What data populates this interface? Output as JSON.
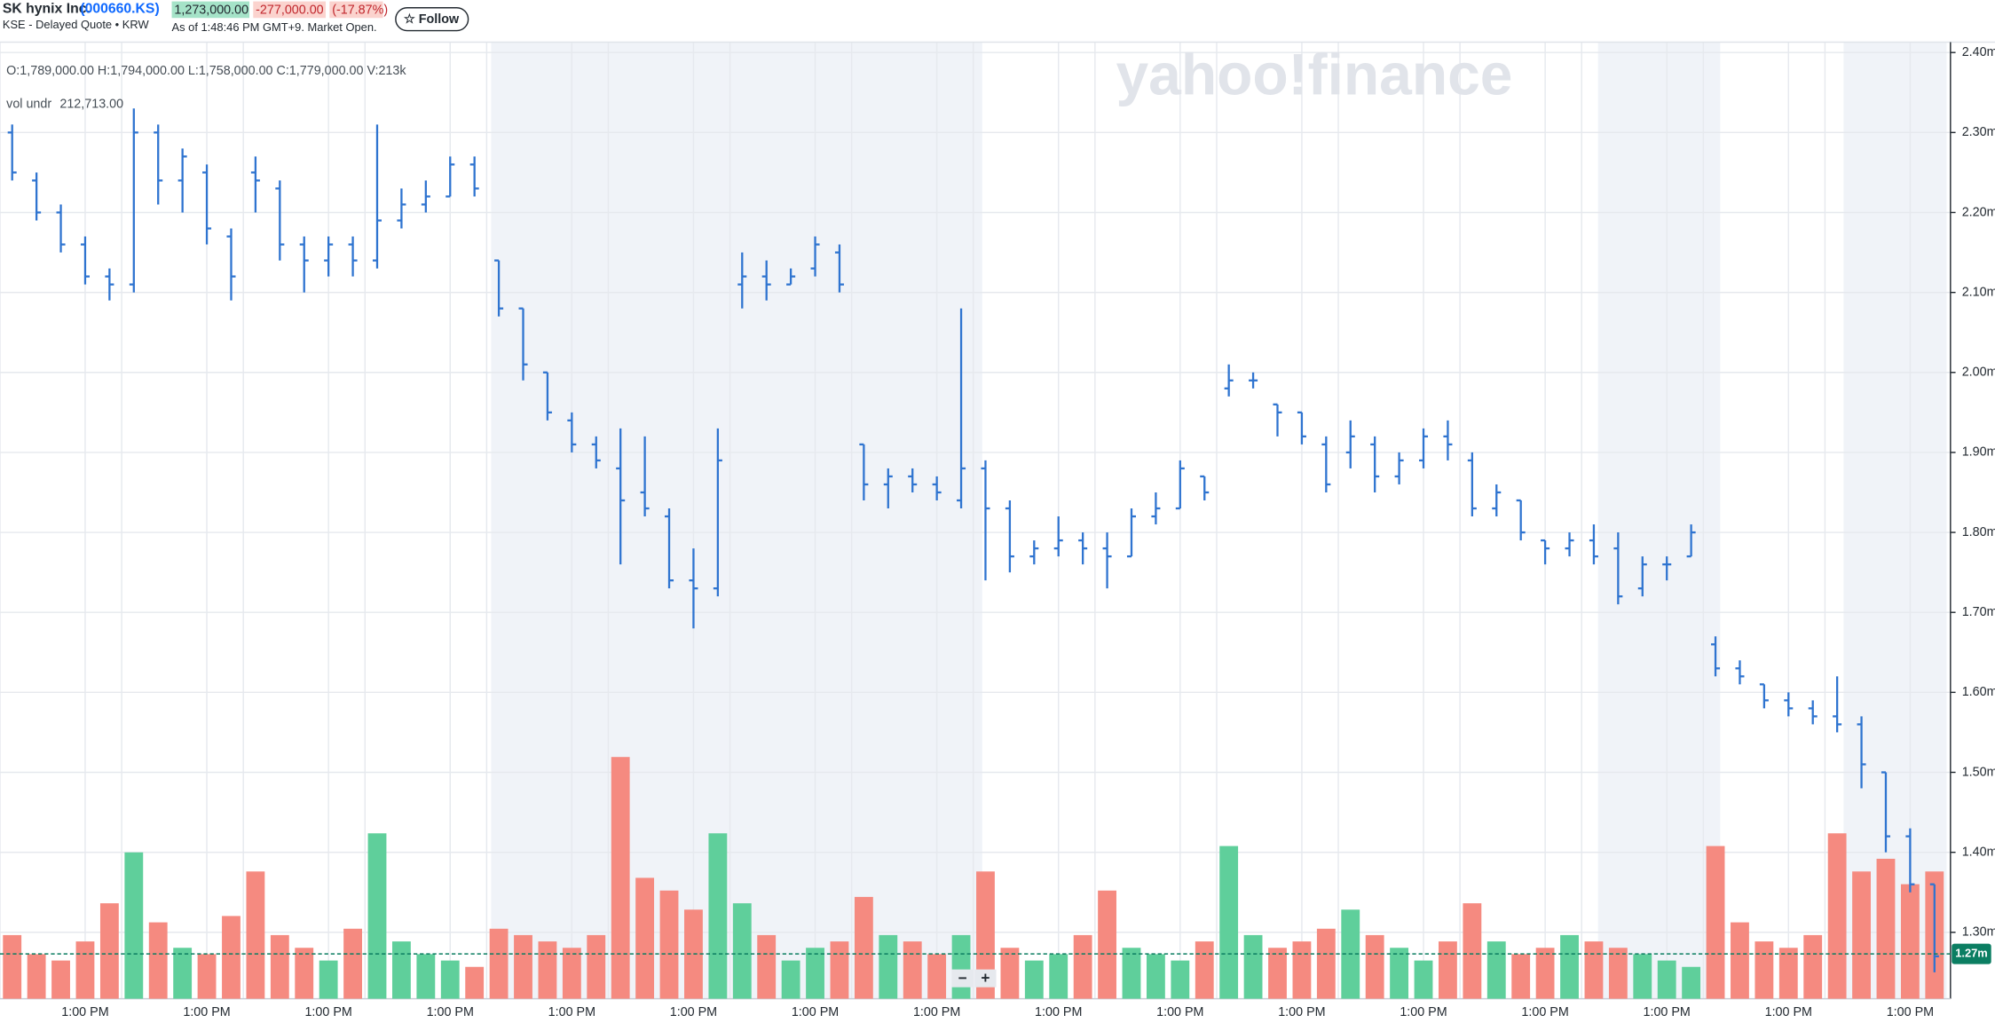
{
  "header": {
    "name": "SK hynix Inc.",
    "symbol": "(000660.KS)",
    "exchange": "KSE - Delayed Quote • KRW",
    "price": "1,273,000.00",
    "change": "-277,000.00",
    "change_pct": "(-17.87%)",
    "as_of": "As of 1:48:46 PM GMT+9. Market Open.",
    "follow": "☆ Follow",
    "logo": "yahoo!finance",
    "controls": [
      "−",
      "+"
    ]
  },
  "chart_data": {
    "type": "ohlc",
    "color": "#2f74d0",
    "readout": "O:1,789,000.00   H:1,794,000.00   L:1,758,000.00   C:1,779,000.00   V:213k",
    "volume_label": "vol undr",
    "volume_readout": "212,713.00",
    "categories": [
      null,
      null,
      null,
      "1:00 PM",
      null,
      null,
      null,
      null,
      "1:00 PM",
      null,
      null,
      null,
      null,
      "1:00 PM",
      null,
      null,
      null,
      null,
      "1:00 PM",
      null,
      null,
      null,
      null,
      "1:00 PM",
      null,
      null,
      null,
      null,
      "1:00 PM",
      null,
      null,
      null,
      null,
      "1:00 PM",
      null,
      null,
      null,
      null,
      "1:00 PM",
      null,
      null,
      null,
      null,
      "1:00 PM",
      null,
      null,
      null,
      null,
      "1:00 PM",
      null,
      null,
      null,
      null,
      "1:00 PM",
      null,
      null,
      null,
      null,
      "1:00 PM",
      null,
      null,
      null,
      null,
      "1:00 PM",
      null,
      null,
      null,
      null,
      "1:00 PM",
      null,
      null,
      null,
      null,
      "1:00 PM",
      null,
      null,
      null,
      null,
      "1:00 PM",
      null
    ],
    "ohlc": [
      [
        2.3,
        2.31,
        2.24,
        2.25
      ],
      [
        2.24,
        2.25,
        2.19,
        2.2
      ],
      [
        2.2,
        2.21,
        2.15,
        2.16
      ],
      [
        2.16,
        2.17,
        2.11,
        2.12
      ],
      [
        2.12,
        2.13,
        2.09,
        2.11
      ],
      [
        2.11,
        2.33,
        2.1,
        2.3
      ],
      [
        2.3,
        2.31,
        2.21,
        2.24
      ],
      [
        2.24,
        2.28,
        2.2,
        2.27
      ],
      [
        2.25,
        2.26,
        2.16,
        2.18
      ],
      [
        2.17,
        2.18,
        2.09,
        2.12
      ],
      [
        2.25,
        2.27,
        2.2,
        2.24
      ],
      [
        2.23,
        2.24,
        2.14,
        2.16
      ],
      [
        2.16,
        2.17,
        2.1,
        2.14
      ],
      [
        2.14,
        2.17,
        2.12,
        2.16
      ],
      [
        2.16,
        2.17,
        2.12,
        2.14
      ],
      [
        2.14,
        2.31,
        2.13,
        2.19
      ],
      [
        2.19,
        2.23,
        2.18,
        2.21
      ],
      [
        2.21,
        2.24,
        2.2,
        2.22
      ],
      [
        2.22,
        2.27,
        2.22,
        2.26
      ],
      [
        2.26,
        2.27,
        2.22,
        2.23
      ],
      [
        2.14,
        2.14,
        2.07,
        2.08
      ],
      [
        2.08,
        2.08,
        1.99,
        2.01
      ],
      [
        2.0,
        2.0,
        1.94,
        1.95
      ],
      [
        1.94,
        1.95,
        1.9,
        1.91
      ],
      [
        1.91,
        1.92,
        1.88,
        1.89
      ],
      [
        1.88,
        1.93,
        1.76,
        1.84
      ],
      [
        1.85,
        1.92,
        1.82,
        1.83
      ],
      [
        1.82,
        1.83,
        1.73,
        1.74
      ],
      [
        1.74,
        1.78,
        1.68,
        1.73
      ],
      [
        1.73,
        1.93,
        1.72,
        1.89
      ],
      [
        2.11,
        2.15,
        2.08,
        2.12
      ],
      [
        2.12,
        2.14,
        2.09,
        2.11
      ],
      [
        2.11,
        2.13,
        2.11,
        2.12
      ],
      [
        2.13,
        2.17,
        2.12,
        2.16
      ],
      [
        2.15,
        2.16,
        2.1,
        2.11
      ],
      [
        1.91,
        1.91,
        1.84,
        1.86
      ],
      [
        1.86,
        1.88,
        1.83,
        1.87
      ],
      [
        1.87,
        1.88,
        1.85,
        1.86
      ],
      [
        1.86,
        1.87,
        1.84,
        1.85
      ],
      [
        1.84,
        2.08,
        1.83,
        1.88
      ],
      [
        1.88,
        1.89,
        1.74,
        1.83
      ],
      [
        1.83,
        1.84,
        1.75,
        1.77
      ],
      [
        1.77,
        1.79,
        1.76,
        1.78
      ],
      [
        1.78,
        1.82,
        1.77,
        1.79
      ],
      [
        1.79,
        1.8,
        1.76,
        1.78
      ],
      [
        1.78,
        1.8,
        1.73,
        1.77
      ],
      [
        1.77,
        1.83,
        1.77,
        1.82
      ],
      [
        1.82,
        1.85,
        1.81,
        1.83
      ],
      [
        1.83,
        1.89,
        1.83,
        1.88
      ],
      [
        1.87,
        1.87,
        1.84,
        1.85
      ],
      [
        1.98,
        2.01,
        1.97,
        1.99
      ],
      [
        1.99,
        2.0,
        1.98,
        1.99
      ],
      [
        1.96,
        1.96,
        1.92,
        1.95
      ],
      [
        1.95,
        1.95,
        1.91,
        1.92
      ],
      [
        1.91,
        1.92,
        1.85,
        1.86
      ],
      [
        1.9,
        1.94,
        1.88,
        1.92
      ],
      [
        1.91,
        1.92,
        1.85,
        1.87
      ],
      [
        1.87,
        1.9,
        1.86,
        1.89
      ],
      [
        1.89,
        1.93,
        1.88,
        1.92
      ],
      [
        1.92,
        1.94,
        1.89,
        1.91
      ],
      [
        1.89,
        1.9,
        1.82,
        1.83
      ],
      [
        1.83,
        1.86,
        1.82,
        1.85
      ],
      [
        1.84,
        1.84,
        1.79,
        1.8
      ],
      [
        1.79,
        1.79,
        1.76,
        1.78
      ],
      [
        1.78,
        1.8,
        1.77,
        1.79
      ],
      [
        1.79,
        1.81,
        1.76,
        1.77
      ],
      [
        1.78,
        1.8,
        1.71,
        1.72
      ],
      [
        1.73,
        1.77,
        1.72,
        1.76
      ],
      [
        1.76,
        1.77,
        1.74,
        1.76
      ],
      [
        1.77,
        1.81,
        1.77,
        1.8
      ],
      [
        1.66,
        1.67,
        1.62,
        1.63
      ],
      [
        1.63,
        1.64,
        1.61,
        1.62
      ],
      [
        1.61,
        1.61,
        1.58,
        1.59
      ],
      [
        1.59,
        1.6,
        1.57,
        1.58
      ],
      [
        1.58,
        1.59,
        1.56,
        1.57
      ],
      [
        1.57,
        1.62,
        1.55,
        1.56
      ],
      [
        1.56,
        1.57,
        1.48,
        1.51
      ],
      [
        1.5,
        1.5,
        1.4,
        1.42
      ],
      [
        1.42,
        1.43,
        1.35,
        1.36
      ],
      [
        1.36,
        1.36,
        1.25,
        1.27
      ]
    ],
    "volume": {
      "up_color": "#5fcf9b",
      "down_color": "#f58a80",
      "ylim": [
        0,
        600
      ],
      "values": [
        100,
        70,
        60,
        90,
        150,
        230,
        120,
        80,
        70,
        130,
        200,
        100,
        80,
        60,
        110,
        260,
        90,
        70,
        60,
        50,
        110,
        100,
        90,
        80,
        100,
        380,
        190,
        170,
        140,
        260,
        150,
        100,
        60,
        80,
        90,
        160,
        100,
        90,
        70,
        100,
        200,
        80,
        60,
        70,
        100,
        170,
        80,
        70,
        60,
        90,
        240,
        100,
        80,
        90,
        110,
        140,
        100,
        80,
        60,
        90,
        150,
        90,
        70,
        80,
        100,
        90,
        80,
        70,
        60,
        50,
        240,
        120,
        90,
        80,
        100,
        260,
        200,
        220,
        180,
        200
      ]
    },
    "ylim": [
      1.217,
      2.413
    ],
    "yticks": [
      {
        "value": 2.4,
        "label": "2.40m"
      },
      {
        "value": 2.3,
        "label": "2.30m"
      },
      {
        "value": 2.2,
        "label": "2.20m"
      },
      {
        "value": 2.1,
        "label": "2.10m"
      },
      {
        "value": 2.0,
        "label": "2.00m"
      },
      {
        "value": 1.9,
        "label": "1.90m"
      },
      {
        "value": 1.8,
        "label": "1.80m"
      },
      {
        "value": 1.7,
        "label": "1.70m"
      },
      {
        "value": 1.6,
        "label": "1.60m"
      },
      {
        "value": 1.5,
        "label": "1.50m"
      },
      {
        "value": 1.4,
        "label": "1.40m"
      },
      {
        "value": 1.3,
        "label": "1.30m"
      }
    ],
    "last_price": {
      "value": 1.273,
      "label": "1.27m"
    },
    "grid": true
  }
}
